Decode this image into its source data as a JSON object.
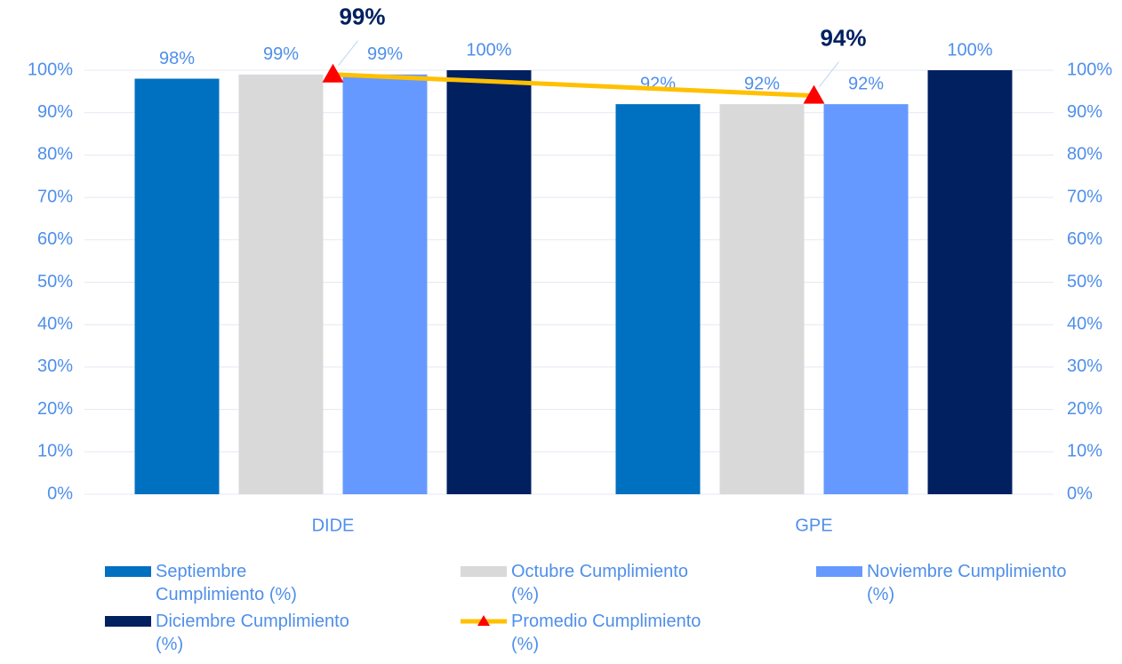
{
  "chart_data": {
    "type": "bar",
    "categories": [
      "DIDE",
      "GPE"
    ],
    "series": [
      {
        "name": "Septiembre Cumplimiento (%)",
        "color": "#0070C0",
        "values": [
          98,
          92
        ],
        "value_labels": [
          "98%",
          "92%"
        ]
      },
      {
        "name": "Octubre Cumplimiento (%)",
        "color": "#D9D9D9",
        "values": [
          99,
          92
        ],
        "value_labels": [
          "99%",
          "92%"
        ]
      },
      {
        "name": "Noviembre Cumplimiento (%)",
        "color": "#6699FF",
        "values": [
          99,
          92
        ],
        "value_labels": [
          "99%",
          "92%"
        ]
      },
      {
        "name": "Diciembre Cumplimiento (%)",
        "color": "#002060",
        "values": [
          100,
          100
        ],
        "value_labels": [
          "100%",
          "100%"
        ]
      },
      {
        "name": "Promedio Cumplimiento (%)",
        "type": "line",
        "axis": "y2",
        "color": "#FFC000",
        "marker_color": "#FF0000",
        "values": [
          99,
          94
        ],
        "value_labels": [
          "99%",
          "94%"
        ]
      }
    ],
    "ylim": [
      0,
      100
    ],
    "yticks": [
      {
        "value": 0,
        "label": "0%"
      },
      {
        "value": 10,
        "label": "10%"
      },
      {
        "value": 20,
        "label": "20%"
      },
      {
        "value": 30,
        "label": "30%"
      },
      {
        "value": 40,
        "label": "40%"
      },
      {
        "value": 50,
        "label": "50%"
      },
      {
        "value": 60,
        "label": "60%"
      },
      {
        "value": 70,
        "label": "70%"
      },
      {
        "value": 80,
        "label": "80%"
      },
      {
        "value": 90,
        "label": "90%"
      },
      {
        "value": 100,
        "label": "100%"
      }
    ],
    "y2lim": [
      0,
      100
    ],
    "y2ticks": [
      {
        "value": 0,
        "label": "0%"
      },
      {
        "value": 10,
        "label": "10%"
      },
      {
        "value": 20,
        "label": "20%"
      },
      {
        "value": 30,
        "label": "30%"
      },
      {
        "value": 40,
        "label": "40%"
      },
      {
        "value": 50,
        "label": "50%"
      },
      {
        "value": 60,
        "label": "60%"
      },
      {
        "value": 70,
        "label": "70%"
      },
      {
        "value": 80,
        "label": "80%"
      },
      {
        "value": 90,
        "label": "90%"
      },
      {
        "value": 100,
        "label": "100%"
      }
    ],
    "grid": true,
    "legend": "bottom"
  }
}
